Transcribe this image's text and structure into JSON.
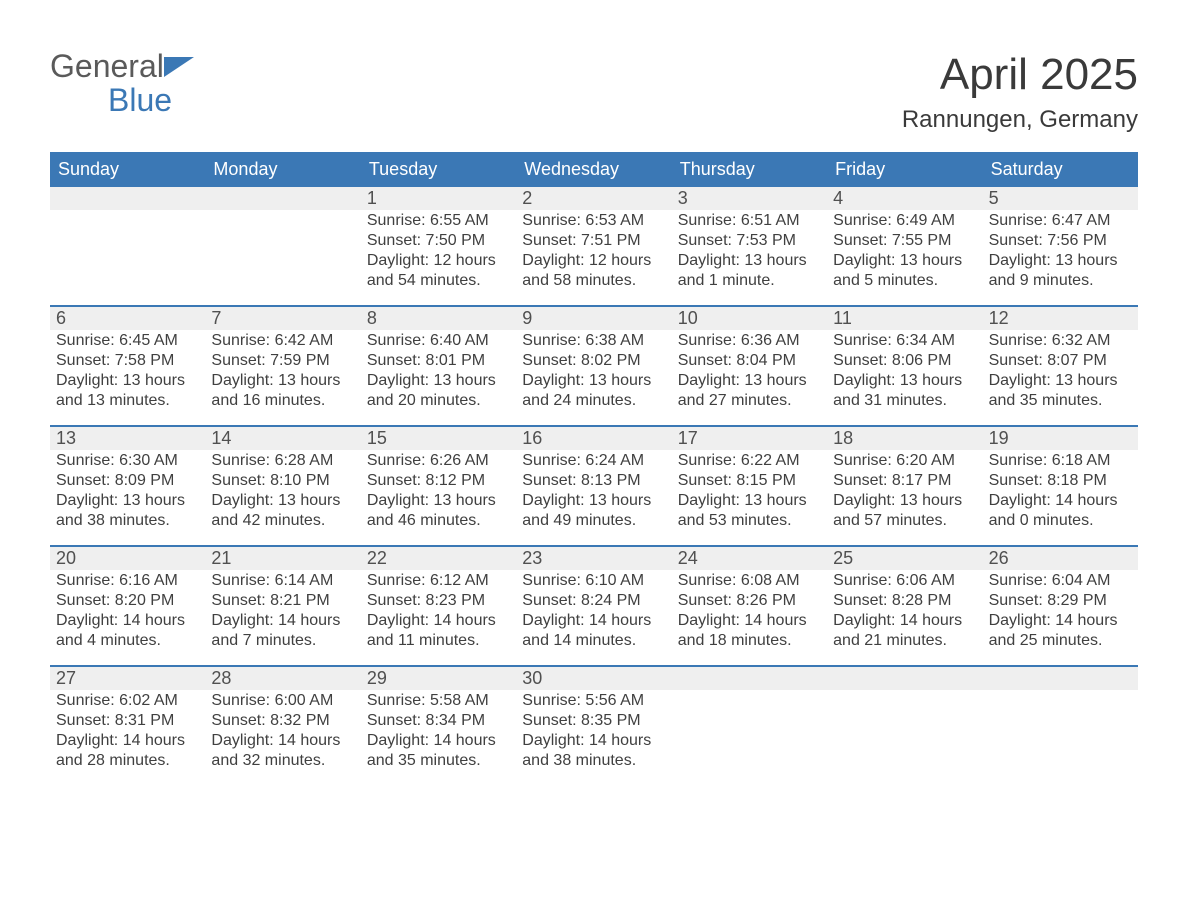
{
  "brand": {
    "word1": "General",
    "word2": "Blue"
  },
  "title": "April 2025",
  "location": "Rannungen, Germany",
  "colors": {
    "brand_blue": "#3b78b5",
    "stripe_bg": "#efefef",
    "text": "#3a3a3a",
    "bg": "#ffffff"
  },
  "dow": [
    "Sunday",
    "Monday",
    "Tuesday",
    "Wednesday",
    "Thursday",
    "Friday",
    "Saturday"
  ],
  "weeks": [
    [
      null,
      null,
      {
        "n": "1",
        "sr": "6:55 AM",
        "ss": "7:50 PM",
        "dl": "12 hours and 54 minutes."
      },
      {
        "n": "2",
        "sr": "6:53 AM",
        "ss": "7:51 PM",
        "dl": "12 hours and 58 minutes."
      },
      {
        "n": "3",
        "sr": "6:51 AM",
        "ss": "7:53 PM",
        "dl": "13 hours and 1 minute."
      },
      {
        "n": "4",
        "sr": "6:49 AM",
        "ss": "7:55 PM",
        "dl": "13 hours and 5 minutes."
      },
      {
        "n": "5",
        "sr": "6:47 AM",
        "ss": "7:56 PM",
        "dl": "13 hours and 9 minutes."
      }
    ],
    [
      {
        "n": "6",
        "sr": "6:45 AM",
        "ss": "7:58 PM",
        "dl": "13 hours and 13 minutes."
      },
      {
        "n": "7",
        "sr": "6:42 AM",
        "ss": "7:59 PM",
        "dl": "13 hours and 16 minutes."
      },
      {
        "n": "8",
        "sr": "6:40 AM",
        "ss": "8:01 PM",
        "dl": "13 hours and 20 minutes."
      },
      {
        "n": "9",
        "sr": "6:38 AM",
        "ss": "8:02 PM",
        "dl": "13 hours and 24 minutes."
      },
      {
        "n": "10",
        "sr": "6:36 AM",
        "ss": "8:04 PM",
        "dl": "13 hours and 27 minutes."
      },
      {
        "n": "11",
        "sr": "6:34 AM",
        "ss": "8:06 PM",
        "dl": "13 hours and 31 minutes."
      },
      {
        "n": "12",
        "sr": "6:32 AM",
        "ss": "8:07 PM",
        "dl": "13 hours and 35 minutes."
      }
    ],
    [
      {
        "n": "13",
        "sr": "6:30 AM",
        "ss": "8:09 PM",
        "dl": "13 hours and 38 minutes."
      },
      {
        "n": "14",
        "sr": "6:28 AM",
        "ss": "8:10 PM",
        "dl": "13 hours and 42 minutes."
      },
      {
        "n": "15",
        "sr": "6:26 AM",
        "ss": "8:12 PM",
        "dl": "13 hours and 46 minutes."
      },
      {
        "n": "16",
        "sr": "6:24 AM",
        "ss": "8:13 PM",
        "dl": "13 hours and 49 minutes."
      },
      {
        "n": "17",
        "sr": "6:22 AM",
        "ss": "8:15 PM",
        "dl": "13 hours and 53 minutes."
      },
      {
        "n": "18",
        "sr": "6:20 AM",
        "ss": "8:17 PM",
        "dl": "13 hours and 57 minutes."
      },
      {
        "n": "19",
        "sr": "6:18 AM",
        "ss": "8:18 PM",
        "dl": "14 hours and 0 minutes."
      }
    ],
    [
      {
        "n": "20",
        "sr": "6:16 AM",
        "ss": "8:20 PM",
        "dl": "14 hours and 4 minutes."
      },
      {
        "n": "21",
        "sr": "6:14 AM",
        "ss": "8:21 PM",
        "dl": "14 hours and 7 minutes."
      },
      {
        "n": "22",
        "sr": "6:12 AM",
        "ss": "8:23 PM",
        "dl": "14 hours and 11 minutes."
      },
      {
        "n": "23",
        "sr": "6:10 AM",
        "ss": "8:24 PM",
        "dl": "14 hours and 14 minutes."
      },
      {
        "n": "24",
        "sr": "6:08 AM",
        "ss": "8:26 PM",
        "dl": "14 hours and 18 minutes."
      },
      {
        "n": "25",
        "sr": "6:06 AM",
        "ss": "8:28 PM",
        "dl": "14 hours and 21 minutes."
      },
      {
        "n": "26",
        "sr": "6:04 AM",
        "ss": "8:29 PM",
        "dl": "14 hours and 25 minutes."
      }
    ],
    [
      {
        "n": "27",
        "sr": "6:02 AM",
        "ss": "8:31 PM",
        "dl": "14 hours and 28 minutes."
      },
      {
        "n": "28",
        "sr": "6:00 AM",
        "ss": "8:32 PM",
        "dl": "14 hours and 32 minutes."
      },
      {
        "n": "29",
        "sr": "5:58 AM",
        "ss": "8:34 PM",
        "dl": "14 hours and 35 minutes."
      },
      {
        "n": "30",
        "sr": "5:56 AM",
        "ss": "8:35 PM",
        "dl": "14 hours and 38 minutes."
      },
      null,
      null,
      null
    ]
  ],
  "labels": {
    "sunrise": "Sunrise: ",
    "sunset": "Sunset: ",
    "daylight": "Daylight: "
  }
}
